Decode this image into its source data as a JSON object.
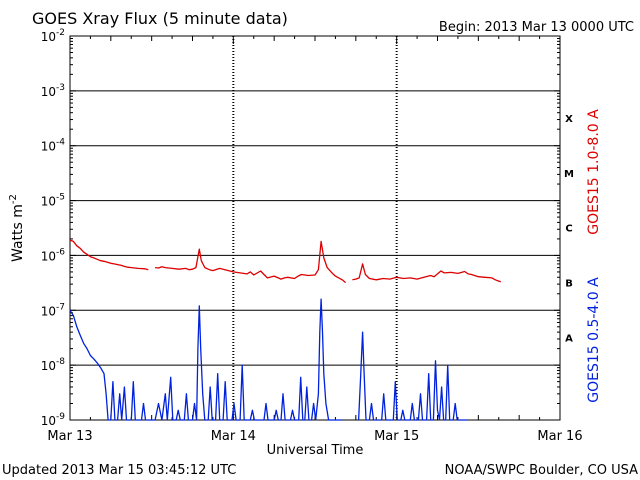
{
  "chart_data": {
    "type": "line",
    "title": "GOES Xray Flux (5 minute data)",
    "begin_label": "Begin:  2013 Mar 13 0000 UTC",
    "xlabel": "Universal Time",
    "ylabel": "Watts m",
    "ylabel_exp": "-2",
    "updated": "Updated 2013 Mar 15 03:45:12 UTC",
    "source": "NOAA/SWPC Boulder, CO USA",
    "x_ticks": [
      "Mar 13",
      "Mar 14",
      "Mar 15",
      "Mar 16"
    ],
    "y_scale": "log",
    "ylim": [
      1e-09,
      0.01
    ],
    "xlim_hours": [
      0,
      72
    ],
    "y_ticks": [
      {
        "exp": "-2",
        "value": 0.01
      },
      {
        "exp": "-3",
        "value": 0.001
      },
      {
        "exp": "-4",
        "value": 0.0001
      },
      {
        "exp": "-5",
        "value": 1e-05
      },
      {
        "exp": "-6",
        "value": 1e-06
      },
      {
        "exp": "-7",
        "value": 1e-07
      },
      {
        "exp": "-8",
        "value": 1e-08
      },
      {
        "exp": "-9",
        "value": 1e-09
      }
    ],
    "flare_classes": [
      {
        "label": "X",
        "value": 0.00032
      },
      {
        "label": "M",
        "value": 3.2e-05
      },
      {
        "label": "C",
        "value": 3.2e-06
      },
      {
        "label": "B",
        "value": 3.2e-07
      },
      {
        "label": "A",
        "value": 3.2e-08
      }
    ],
    "series": [
      {
        "name": "GOES15 1.0-8.0 A",
        "color": "#dd0000",
        "points": [
          [
            0.0,
            1.9e-06
          ],
          [
            0.5,
            1.8e-06
          ],
          [
            1.0,
            1.5e-06
          ],
          [
            1.5,
            1.35e-06
          ],
          [
            2.0,
            1.15e-06
          ],
          [
            2.5,
            1.05e-06
          ],
          [
            3.0,
            9.5e-07
          ],
          [
            3.5,
            9e-07
          ],
          [
            4.0,
            8.5e-07
          ],
          [
            4.5,
            8e-07
          ],
          [
            5.0,
            7.8e-07
          ],
          [
            5.5,
            7.5e-07
          ],
          [
            6.0,
            7.2e-07
          ],
          [
            6.5,
            7e-07
          ],
          [
            7.0,
            6.8e-07
          ],
          [
            7.5,
            6.6e-07
          ],
          [
            8.0,
            6.3e-07
          ],
          [
            8.5,
            6.1e-07
          ],
          [
            9.0,
            6e-07
          ],
          [
            9.5,
            5.9e-07
          ],
          [
            10.0,
            5.8e-07
          ],
          [
            11.0,
            5.7e-07
          ],
          [
            11.5,
            5.5e-07
          ],
          [
            null,
            null
          ],
          [
            12.5,
            6e-07
          ],
          [
            13.0,
            5.9e-07
          ],
          [
            13.5,
            6.2e-07
          ],
          [
            14.0,
            6e-07
          ],
          [
            15.0,
            5.8e-07
          ],
          [
            16.0,
            5.6e-07
          ],
          [
            17.0,
            5.8e-07
          ],
          [
            17.5,
            5.5e-07
          ],
          [
            18.0,
            5.6e-07
          ],
          [
            18.5,
            6e-07
          ],
          [
            19.0,
            1.3e-06
          ],
          [
            19.3,
            8e-07
          ],
          [
            19.8,
            6e-07
          ],
          [
            20.5,
            5.5e-07
          ],
          [
            21.0,
            5.3e-07
          ],
          [
            22.0,
            5.8e-07
          ],
          [
            23.0,
            5.4e-07
          ],
          [
            24.0,
            5e-07
          ],
          [
            25.0,
            4.8e-07
          ],
          [
            26.0,
            4.6e-07
          ],
          [
            26.5,
            5e-07
          ],
          [
            27.0,
            4.4e-07
          ],
          [
            28.0,
            5.2e-07
          ],
          [
            28.5,
            4.5e-07
          ],
          [
            29.0,
            3.9e-07
          ],
          [
            30.0,
            4.2e-07
          ],
          [
            31.0,
            3.7e-07
          ],
          [
            31.5,
            3.9e-07
          ],
          [
            32.0,
            4e-07
          ],
          [
            33.0,
            3.8e-07
          ],
          [
            33.5,
            4.2e-07
          ],
          [
            34.0,
            4.5e-07
          ],
          [
            35.0,
            4.3e-07
          ],
          [
            36.0,
            4.4e-07
          ],
          [
            36.5,
            5.5e-07
          ],
          [
            36.9,
            1.8e-06
          ],
          [
            37.3,
            9e-07
          ],
          [
            37.8,
            6e-07
          ],
          [
            38.5,
            4.8e-07
          ],
          [
            39.0,
            4.2e-07
          ],
          [
            40.0,
            3.6e-07
          ],
          [
            40.5,
            3.2e-07
          ],
          [
            null,
            null
          ],
          [
            41.5,
            3.6e-07
          ],
          [
            42.0,
            3.7e-07
          ],
          [
            42.5,
            3.9e-07
          ],
          [
            43.0,
            7e-07
          ],
          [
            43.4,
            4.5e-07
          ],
          [
            44.0,
            3.8e-07
          ],
          [
            45.0,
            3.6e-07
          ],
          [
            46.0,
            3.8e-07
          ],
          [
            47.0,
            3.7e-07
          ],
          [
            48.0,
            4e-07
          ],
          [
            49.0,
            3.8e-07
          ],
          [
            50.0,
            3.9e-07
          ],
          [
            51.0,
            3.7e-07
          ],
          [
            52.0,
            4e-07
          ],
          [
            53.0,
            4.3e-07
          ],
          [
            53.5,
            4.1e-07
          ],
          [
            54.0,
            4.6e-07
          ],
          [
            54.5,
            5.2e-07
          ],
          [
            55.0,
            4.8e-07
          ],
          [
            56.0,
            4.9e-07
          ],
          [
            57.0,
            4.7e-07
          ],
          [
            58.0,
            5.1e-07
          ],
          [
            58.5,
            4.6e-07
          ],
          [
            59.0,
            4.5e-07
          ],
          [
            60.0,
            4.1e-07
          ],
          [
            61.0,
            4e-07
          ],
          [
            62.0,
            3.9e-07
          ],
          [
            62.5,
            3.6e-07
          ],
          [
            63.0,
            3.4e-07
          ],
          [
            63.3,
            3.3e-07
          ]
        ]
      },
      {
        "name": "GOES15 0.5-4.0 A",
        "color": "#0022dd",
        "points": [
          [
            0.0,
            1e-07
          ],
          [
            0.5,
            8e-08
          ],
          [
            1.0,
            5e-08
          ],
          [
            1.5,
            3.5e-08
          ],
          [
            2.0,
            2.5e-08
          ],
          [
            2.5,
            2e-08
          ],
          [
            3.0,
            1.5e-08
          ],
          [
            3.5,
            1.3e-08
          ],
          [
            4.0,
            1.1e-08
          ],
          [
            4.5,
            9e-09
          ],
          [
            5.0,
            7e-09
          ],
          [
            5.3,
            3e-09
          ],
          [
            5.6,
            1e-09
          ],
          [
            6.0,
            1e-09
          ],
          [
            6.3,
            5e-09
          ],
          [
            6.6,
            1e-09
          ],
          [
            7.0,
            1e-09
          ],
          [
            7.3,
            3e-09
          ],
          [
            7.6,
            1e-09
          ],
          [
            8.0,
            4e-09
          ],
          [
            8.3,
            1e-09
          ],
          [
            9.0,
            1e-09
          ],
          [
            9.3,
            5e-09
          ],
          [
            9.6,
            1e-09
          ],
          [
            10.5,
            1e-09
          ],
          [
            10.8,
            2e-09
          ],
          [
            11.1,
            1e-09
          ],
          [
            12.5,
            1e-09
          ],
          [
            13.0,
            2e-09
          ],
          [
            13.5,
            1e-09
          ],
          [
            14.0,
            3e-09
          ],
          [
            14.3,
            1e-09
          ],
          [
            14.8,
            6e-09
          ],
          [
            15.1,
            1e-09
          ],
          [
            15.6,
            1e-09
          ],
          [
            15.9,
            1.5e-09
          ],
          [
            16.2,
            1e-09
          ],
          [
            16.8,
            1e-09
          ],
          [
            17.1,
            3e-09
          ],
          [
            17.4,
            1e-09
          ],
          [
            18.0,
            1e-09
          ],
          [
            18.3,
            2e-09
          ],
          [
            18.6,
            1e-09
          ],
          [
            18.8,
            2e-08
          ],
          [
            19.0,
            1.2e-07
          ],
          [
            19.2,
            2e-08
          ],
          [
            19.5,
            3e-09
          ],
          [
            19.8,
            1e-09
          ],
          [
            20.3,
            1e-09
          ],
          [
            20.6,
            4e-09
          ],
          [
            20.9,
            1e-09
          ],
          [
            21.4,
            1e-09
          ],
          [
            21.7,
            7e-09
          ],
          [
            22.0,
            1e-09
          ],
          [
            22.5,
            1e-09
          ],
          [
            22.8,
            5e-09
          ],
          [
            23.1,
            1e-09
          ],
          [
            23.8,
            1e-09
          ],
          [
            24.1,
            2e-09
          ],
          [
            24.4,
            1e-09
          ],
          [
            25.0,
            1e-09
          ],
          [
            25.3,
            1e-08
          ],
          [
            25.6,
            1e-09
          ],
          [
            26.5,
            1e-09
          ],
          [
            26.8,
            1.5e-09
          ],
          [
            27.1,
            1e-09
          ],
          [
            28.5,
            1e-09
          ],
          [
            28.8,
            2e-09
          ],
          [
            29.1,
            1e-09
          ],
          [
            30.0,
            1e-09
          ],
          [
            30.3,
            1.5e-09
          ],
          [
            30.6,
            1e-09
          ],
          [
            31.0,
            1e-09
          ],
          [
            31.3,
            3e-09
          ],
          [
            31.6,
            1e-09
          ],
          [
            32.4,
            1e-09
          ],
          [
            32.7,
            1.5e-09
          ],
          [
            33.0,
            1e-09
          ],
          [
            33.6,
            1e-09
          ],
          [
            33.9,
            6e-09
          ],
          [
            34.2,
            1e-09
          ],
          [
            34.5,
            1e-09
          ],
          [
            34.8,
            4e-09
          ],
          [
            35.1,
            1e-09
          ],
          [
            35.5,
            1e-09
          ],
          [
            35.8,
            2e-09
          ],
          [
            36.1,
            1e-09
          ],
          [
            36.5,
            3e-09
          ],
          [
            36.7,
            4e-08
          ],
          [
            36.9,
            1.6e-07
          ],
          [
            37.1,
            4e-08
          ],
          [
            37.3,
            7e-09
          ],
          [
            37.6,
            2e-09
          ],
          [
            38.0,
            1e-09
          ],
          [
            40.0,
            1e-09
          ],
          [
            null,
            null
          ],
          [
            42.4,
            1e-09
          ],
          [
            42.7,
            6e-09
          ],
          [
            43.0,
            4e-08
          ],
          [
            43.2,
            8e-09
          ],
          [
            43.5,
            1e-09
          ],
          [
            44.0,
            1e-09
          ],
          [
            44.3,
            2e-09
          ],
          [
            44.6,
            1e-09
          ],
          [
            45.8,
            1e-09
          ],
          [
            46.1,
            3e-09
          ],
          [
            46.4,
            1e-09
          ],
          [
            47.5,
            1e-09
          ],
          [
            47.8,
            5e-09
          ],
          [
            48.1,
            1e-09
          ],
          [
            48.6,
            1e-09
          ],
          [
            48.9,
            1.5e-09
          ],
          [
            49.2,
            1e-09
          ],
          [
            50.0,
            1e-09
          ],
          [
            50.3,
            2e-09
          ],
          [
            50.6,
            1e-09
          ],
          [
            51.2,
            1e-09
          ],
          [
            51.5,
            3e-09
          ],
          [
            51.8,
            1e-09
          ],
          [
            52.4,
            1e-09
          ],
          [
            52.7,
            7e-09
          ],
          [
            53.0,
            1e-09
          ],
          [
            53.4,
            1e-09
          ],
          [
            53.7,
            1.2e-08
          ],
          [
            54.0,
            1.5e-09
          ],
          [
            54.3,
            1e-09
          ],
          [
            54.6,
            4e-09
          ],
          [
            54.9,
            1e-09
          ],
          [
            55.2,
            1e-09
          ],
          [
            55.5,
            1e-08
          ],
          [
            55.8,
            1e-09
          ],
          [
            56.3,
            1e-09
          ],
          [
            56.6,
            2e-09
          ],
          [
            56.9,
            1e-09
          ],
          [
            57.4,
            1e-09
          ],
          [
            57.7,
            1e-09
          ],
          [
            58.1,
            1e-09
          ],
          [
            58.4,
            1e-09
          ]
        ]
      }
    ]
  }
}
